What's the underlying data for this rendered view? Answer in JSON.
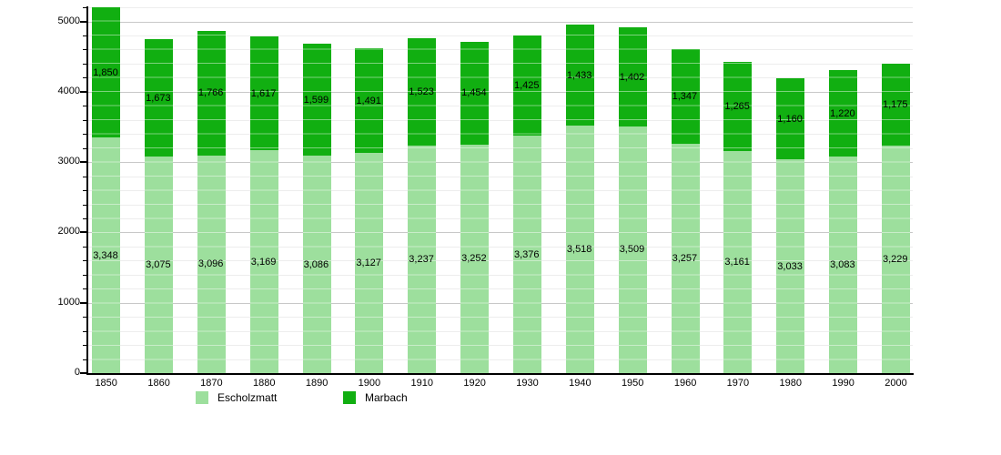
{
  "chart_data": {
    "type": "bar",
    "stacked": true,
    "title": "",
    "xlabel": "",
    "ylabel": "",
    "ylim": [
      0,
      5000
    ],
    "y_major_step": 1000,
    "y_minor_step": 200,
    "grid": true,
    "legend_position": "bottom",
    "y_ticks": [
      "0",
      "1000",
      "2000",
      "3000",
      "4000",
      "5000"
    ],
    "categories": [
      "1850",
      "1860",
      "1870",
      "1880",
      "1890",
      "1900",
      "1910",
      "1920",
      "1930",
      "1940",
      "1950",
      "1960",
      "1970",
      "1980",
      "1990",
      "2000"
    ],
    "series": [
      {
        "name": "Escholzmatt",
        "color": "#9ddf9d",
        "values": [
          3348,
          3075,
          3096,
          3169,
          3086,
          3127,
          3237,
          3252,
          3376,
          3518,
          3509,
          3257,
          3161,
          3033,
          3083,
          3229
        ],
        "labels": [
          "3,348",
          "3,075",
          "3,096",
          "3,169",
          "3,086",
          "3,127",
          "3,237",
          "3,252",
          "3,376",
          "3,518",
          "3,509",
          "3,257",
          "3,161",
          "3,033",
          "3,083",
          "3,229"
        ]
      },
      {
        "name": "Marbach",
        "color": "#11af11",
        "values": [
          1850,
          1673,
          1766,
          1617,
          1599,
          1491,
          1523,
          1454,
          1425,
          1433,
          1402,
          1347,
          1265,
          1160,
          1220,
          1175
        ],
        "labels": [
          "1,850",
          "1,673",
          "1,766",
          "1,617",
          "1,599",
          "1,491",
          "1,523",
          "1,454",
          "1,425",
          "1,433",
          "1,402",
          "1,347",
          "1,265",
          "1,160",
          "1,220",
          "1,175"
        ]
      }
    ]
  },
  "colors": {
    "axis": "#000000",
    "major_gridline": "#c8c8c8",
    "minor_gridline": "#ededed",
    "background": "#ffffff"
  }
}
